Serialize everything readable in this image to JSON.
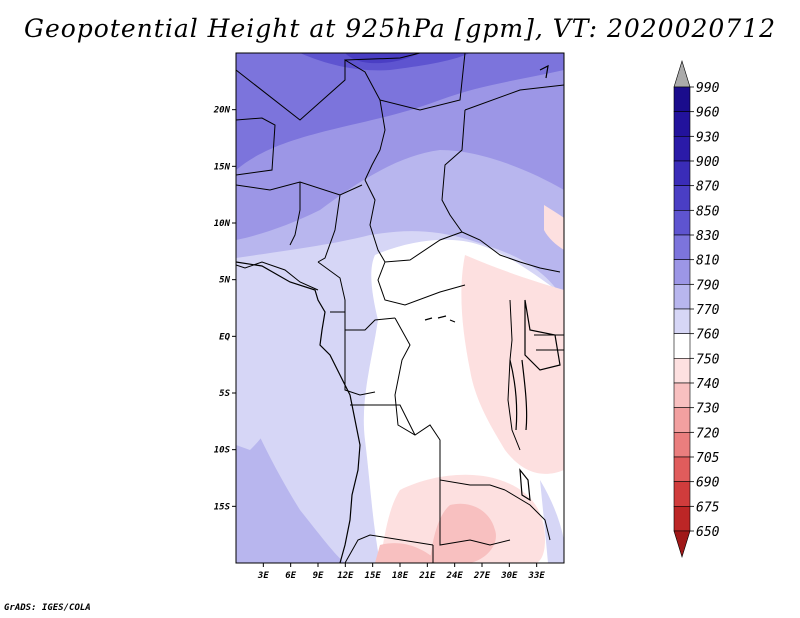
{
  "title": "Geopotential Height at 925hPa [gpm], VT: 2020020712",
  "credit": "GrADS: IGES/COLA",
  "map": {
    "lon_range": [
      0,
      36
    ],
    "lat_range": [
      -20,
      25
    ],
    "lat_ticks": [
      {
        "value": 20,
        "label": "20N"
      },
      {
        "value": 15,
        "label": "15N"
      },
      {
        "value": 10,
        "label": "10N"
      },
      {
        "value": 5,
        "label": "5N"
      },
      {
        "value": 0,
        "label": "EQ"
      },
      {
        "value": -5,
        "label": "5S"
      },
      {
        "value": -10,
        "label": "10S"
      },
      {
        "value": -15,
        "label": "15S"
      }
    ],
    "lon_ticks": [
      {
        "value": 3,
        "label": "3E"
      },
      {
        "value": 6,
        "label": "6E"
      },
      {
        "value": 9,
        "label": "9E"
      },
      {
        "value": 12,
        "label": "12E"
      },
      {
        "value": 15,
        "label": "15E"
      },
      {
        "value": 18,
        "label": "18E"
      },
      {
        "value": 21,
        "label": "21E"
      },
      {
        "value": 24,
        "label": "24E"
      },
      {
        "value": 27,
        "label": "27E"
      },
      {
        "value": 30,
        "label": "30E"
      },
      {
        "value": 33,
        "label": "33E"
      }
    ]
  },
  "colorbar": {
    "levels": [
      {
        "label": "990",
        "color": "#1a0c8c"
      },
      {
        "label": "960",
        "color": "#22129c"
      },
      {
        "label": "930",
        "color": "#2a1aa8"
      },
      {
        "label": "900",
        "color": "#3a2cb8"
      },
      {
        "label": "870",
        "color": "#4a3ec4"
      },
      {
        "label": "850",
        "color": "#5e54d0"
      },
      {
        "label": "830",
        "color": "#7c74dc"
      },
      {
        "label": "810",
        "color": "#9c96e6"
      },
      {
        "label": "790",
        "color": "#b8b6ee"
      },
      {
        "label": "770",
        "color": "#d6d6f6"
      },
      {
        "label": "760",
        "color": "#ffffff"
      },
      {
        "label": "750",
        "color": "#fde0e0"
      },
      {
        "label": "740",
        "color": "#f8c0c0"
      },
      {
        "label": "730",
        "color": "#f2a0a0"
      },
      {
        "label": "720",
        "color": "#ea7e7e"
      },
      {
        "label": "705",
        "color": "#e05c5c"
      },
      {
        "label": "690",
        "color": "#d03c3c"
      },
      {
        "label": "675",
        "color": "#bc2626"
      },
      {
        "label": "650",
        "color": "#a01818"
      }
    ],
    "top_arrow_color": "#aaaaaa",
    "bottom_arrow_color": "#a01818"
  }
}
